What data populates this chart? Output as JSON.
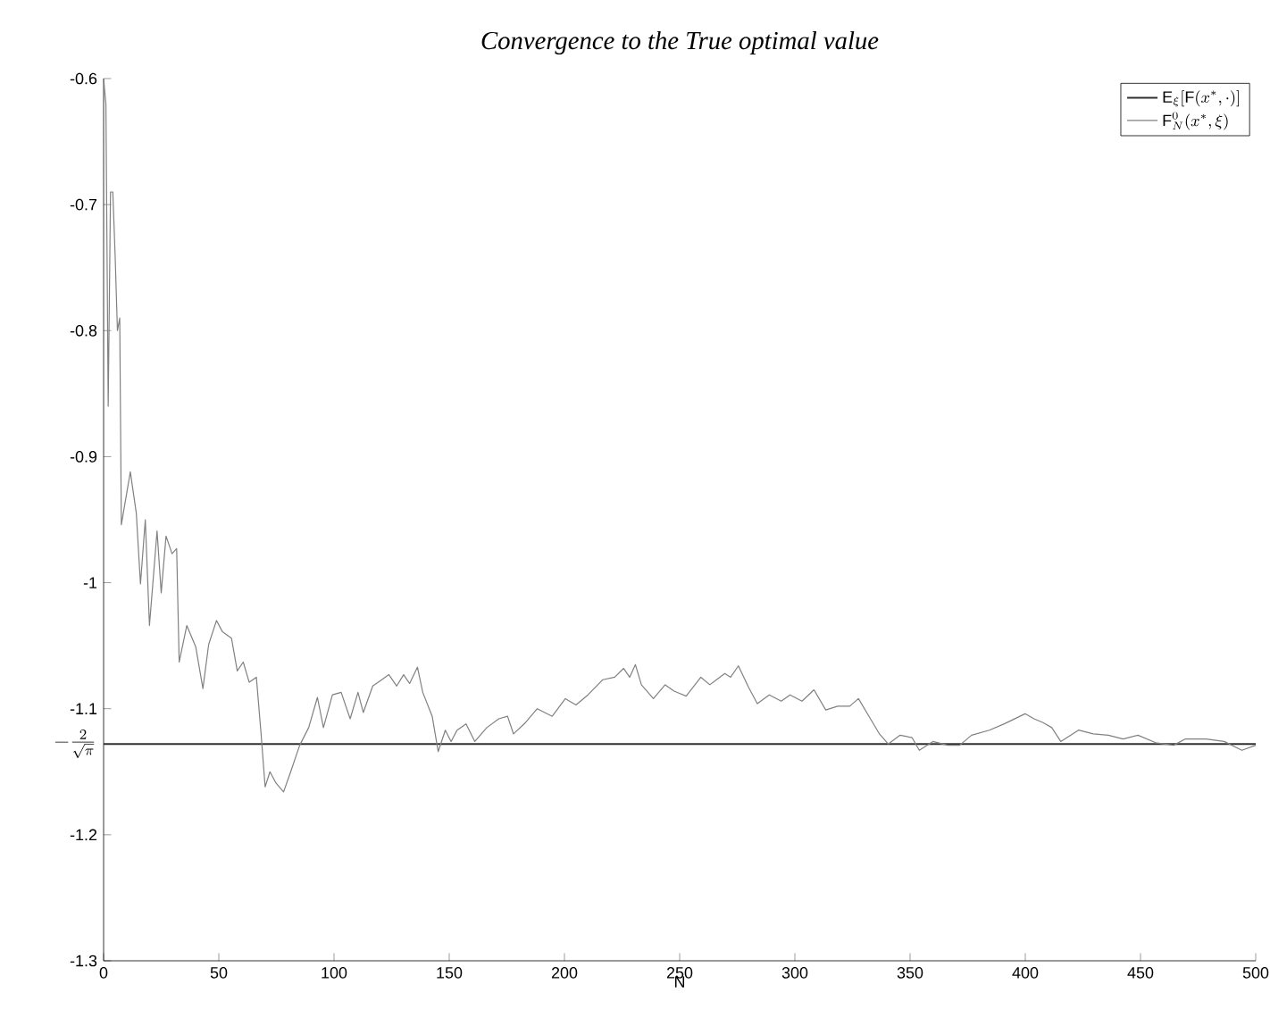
{
  "chart_data": {
    "type": "line",
    "title": "Convergence to the True optimal value",
    "xlabel": "N",
    "xlim": [
      0,
      500
    ],
    "xticks": [
      0,
      50,
      100,
      150,
      200,
      250,
      300,
      350,
      400,
      450,
      500
    ],
    "ylim": [
      -1.3,
      -0.6
    ],
    "yticks": [
      -1.3,
      -1.2,
      -1.1,
      -1,
      -0.9,
      -0.8,
      -0.7,
      -0.6
    ],
    "annotations": [
      {
        "text": "-\\frac{2}{\\sqrt{\\pi}}",
        "x": 0,
        "y": -1.128
      }
    ],
    "legend": "top right",
    "marker": "none",
    "line_style": "solid",
    "series": [
      {
        "name": "\\mathrm{E}_{\\xi}[\\mathrm{F}(x^{*},\\cdot)]",
        "color": "#303030",
        "x": [
          0,
          500
        ],
        "values": [
          -1.128,
          -1.128
        ]
      },
      {
        "name": "\\mathrm{F}_{N}^{0}(x^{*},\\xi)",
        "color": "#808080",
        "x": [
          0,
          1,
          2,
          3,
          4,
          5,
          6,
          7,
          7.7,
          11.6,
          14.2,
          16,
          18.1,
          19.9,
          23.2,
          25,
          27.1,
          29.7,
          31.7,
          32.8,
          36.1,
          40,
          43.1,
          45.6,
          49,
          51.6,
          55.5,
          58,
          60.6,
          63.2,
          66.3,
          68.3,
          70.1,
          72.2,
          74.8,
          78.1,
          81.2,
          85.1,
          89,
          92.8,
          95.4,
          99.3,
          103.1,
          107,
          110.4,
          112.7,
          116.8,
          119.9,
          123.8,
          127.2,
          130.2,
          132.8,
          136.2,
          138.5,
          142.6,
          145.2,
          148.3,
          150.8,
          153.4,
          157.3,
          161.1,
          166.3,
          171.5,
          175.3,
          177.9,
          183.1,
          188.2,
          194.7,
          200.4,
          205,
          210.2,
          216.6,
          221.8,
          225.7,
          228.3,
          230.8,
          233.4,
          238.6,
          243.7,
          247.6,
          252.8,
          259.2,
          263.1,
          269.6,
          272.1,
          275.5,
          279.9,
          283.7,
          288.9,
          294.1,
          297.9,
          303.1,
          308.3,
          313.4,
          318.6,
          323.8,
          327.6,
          332.8,
          336.7,
          340.5,
          345.7,
          350.9,
          354,
          359.9,
          366.4,
          371.5,
          376.7,
          384.4,
          390.9,
          399.9,
          403.8,
          407.7,
          411.5,
          415.4,
          423.1,
          429.5,
          436,
          442.5,
          448.9,
          456.6,
          464.4,
          469.5,
          478.5,
          486.3,
          494,
          500
        ],
        "values": [
          -0.6,
          -0.62,
          -0.86,
          -0.69,
          -0.69,
          -0.74,
          -0.8,
          -0.79,
          -0.954,
          -0.912,
          -0.945,
          -1.001,
          -0.95,
          -1.034,
          -0.959,
          -1.008,
          -0.963,
          -0.977,
          -0.973,
          -1.063,
          -1.034,
          -1.051,
          -1.084,
          -1.049,
          -1.03,
          -1.039,
          -1.044,
          -1.07,
          -1.063,
          -1.079,
          -1.075,
          -1.119,
          -1.162,
          -1.15,
          -1.159,
          -1.166,
          -1.15,
          -1.129,
          -1.115,
          -1.091,
          -1.115,
          -1.089,
          -1.087,
          -1.108,
          -1.087,
          -1.103,
          -1.082,
          -1.078,
          -1.073,
          -1.082,
          -1.073,
          -1.08,
          -1.067,
          -1.087,
          -1.106,
          -1.134,
          -1.117,
          -1.126,
          -1.117,
          -1.112,
          -1.126,
          -1.115,
          -1.108,
          -1.106,
          -1.12,
          -1.111,
          -1.1,
          -1.106,
          -1.092,
          -1.097,
          -1.089,
          -1.077,
          -1.075,
          -1.068,
          -1.075,
          -1.065,
          -1.081,
          -1.092,
          -1.081,
          -1.086,
          -1.09,
          -1.075,
          -1.081,
          -1.072,
          -1.075,
          -1.066,
          -1.083,
          -1.096,
          -1.089,
          -1.094,
          -1.089,
          -1.094,
          -1.085,
          -1.101,
          -1.098,
          -1.098,
          -1.092,
          -1.108,
          -1.12,
          -1.128,
          -1.121,
          -1.123,
          -1.133,
          -1.126,
          -1.129,
          -1.129,
          -1.121,
          -1.117,
          -1.112,
          -1.104,
          -1.108,
          -1.111,
          -1.115,
          -1.126,
          -1.117,
          -1.12,
          -1.121,
          -1.124,
          -1.121,
          -1.127,
          -1.129,
          -1.124,
          -1.124,
          -1.126,
          -1.133,
          -1.129
        ]
      }
    ]
  }
}
